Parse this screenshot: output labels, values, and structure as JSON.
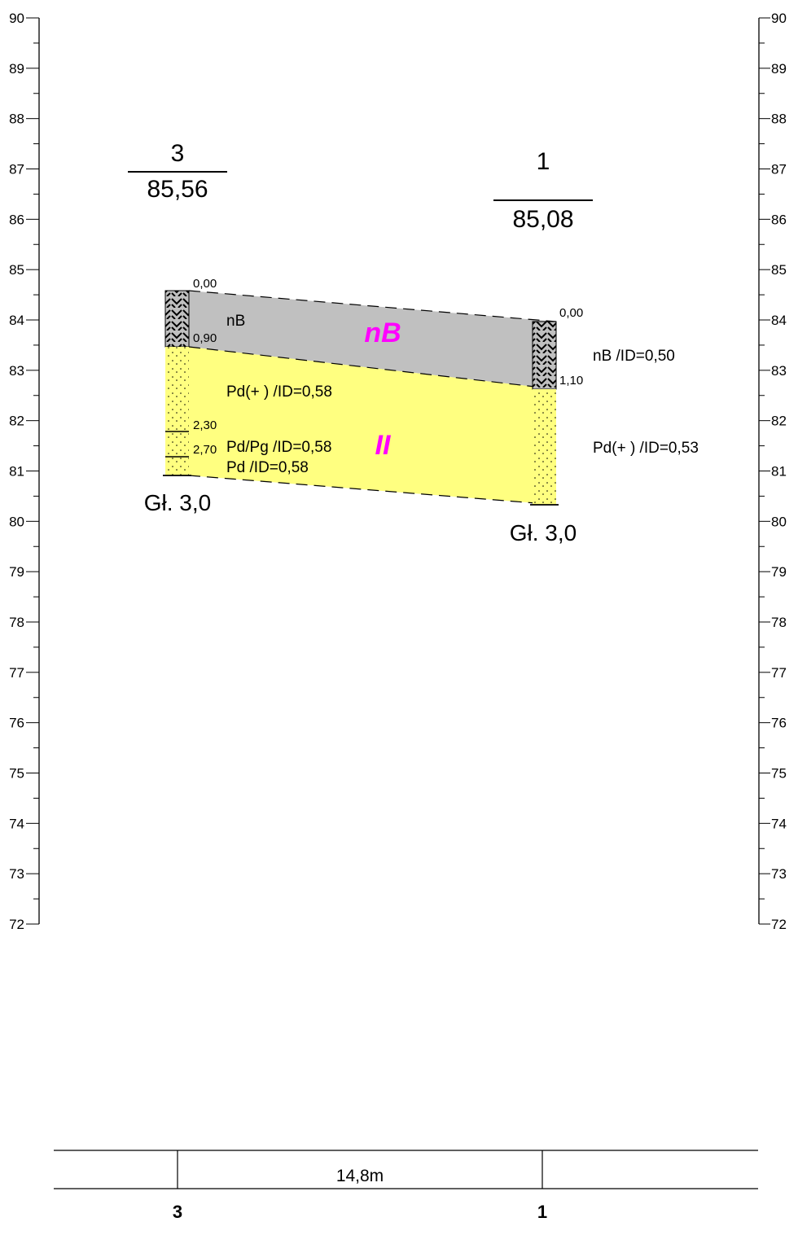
{
  "axis": {
    "ticks": [
      "90",
      "89",
      "88",
      "87",
      "86",
      "85",
      "84",
      "83",
      "82",
      "81",
      "80",
      "79",
      "78",
      "77",
      "76",
      "75",
      "74",
      "73",
      "72"
    ],
    "min": 72,
    "max": 90
  },
  "boreholes": [
    {
      "number": "3",
      "elevation": "85,56",
      "elevation_value": 85.56,
      "depth_label": "Gł. 3,0",
      "depth_value": 3.0,
      "bottom_name": "3",
      "depth_marks": [
        "0,00",
        "0,90",
        "2,30",
        "2,70"
      ],
      "depth_mark_values": [
        0.0,
        0.9,
        2.3,
        2.7
      ],
      "layer_labels": [
        "nB",
        "Pd(+  ) /ID=0,58",
        "Pd/Pg /ID=0,58",
        "Pd /ID=0,58"
      ]
    },
    {
      "number": "1",
      "elevation": "85,08",
      "elevation_value": 85.08,
      "depth_label": "Gł. 3,0",
      "depth_value": 3.0,
      "bottom_name": "1",
      "depth_marks": [
        "0,00",
        "1,10"
      ],
      "depth_mark_values": [
        0.0,
        1.1
      ],
      "layer_labels": [
        "nB /ID=0,50",
        "Pd(+  ) /ID=0,53"
      ]
    }
  ],
  "zones": [
    "nB",
    "II"
  ],
  "distance": "14,8m",
  "colors": {
    "fill": "#c0c0c0",
    "sand": "#ffff80",
    "zone_label": "#ff00ff",
    "line": "#000000"
  }
}
